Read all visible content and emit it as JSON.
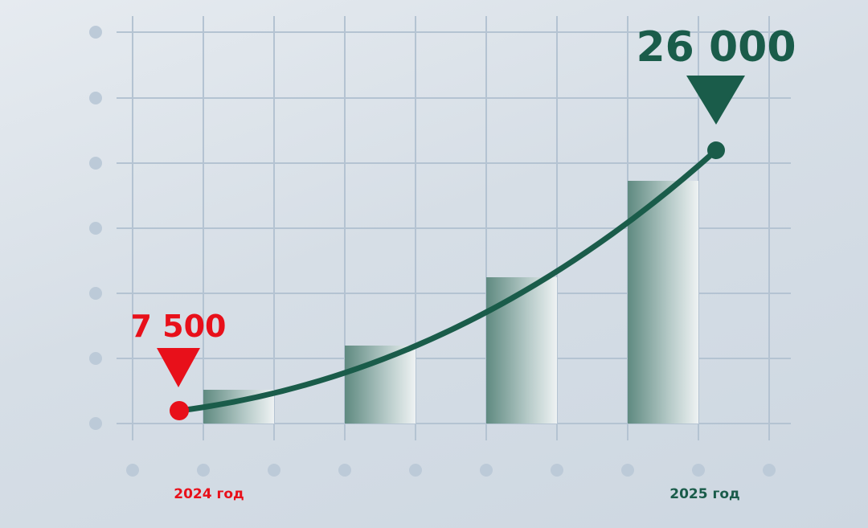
{
  "chart_data": {
    "type": "line",
    "x": [
      "2024 год",
      "2025 год"
    ],
    "values": [
      7500,
      26000
    ],
    "point_labels": [
      "7 500",
      "26 000"
    ],
    "tick_labels": [
      "2024 год",
      "2025 год"
    ],
    "grid": true,
    "colors": {
      "start": "#e8101a",
      "end": "#1a5c4a",
      "line": "#1a5c4a",
      "grid": "#b4c3d2",
      "dots": "#bccad8"
    }
  }
}
